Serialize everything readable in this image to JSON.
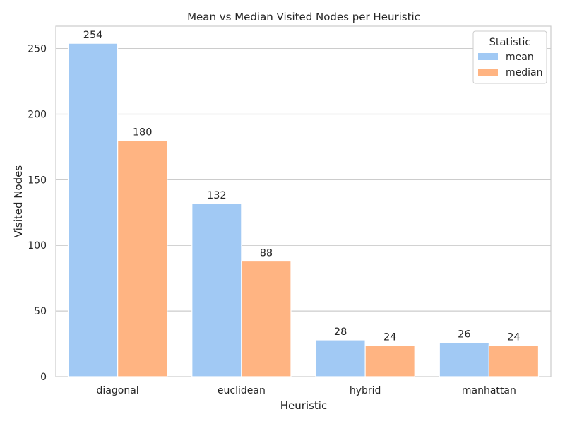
{
  "chart_data": {
    "type": "bar",
    "title": "Mean vs Median Visited Nodes per Heuristic",
    "xlabel": "Heuristic",
    "ylabel": "Visited Nodes",
    "categories": [
      "diagonal",
      "euclidean",
      "hybrid",
      "manhattan"
    ],
    "series": [
      {
        "name": "mean",
        "values": [
          254,
          132,
          28,
          26
        ],
        "labels": [
          "254",
          "132",
          "28",
          "26"
        ],
        "color": "#a1c9f4"
      },
      {
        "name": "median",
        "values": [
          180,
          88,
          24,
          24
        ],
        "labels": [
          "180",
          "88",
          "24",
          "24"
        ],
        "color": "#ffb482"
      }
    ],
    "ylim": [
      0,
      267
    ],
    "yticks": [
      0,
      50,
      100,
      150,
      200,
      250
    ],
    "grid": "horizontal",
    "legend": {
      "title": "Statistic",
      "placement": "top-right"
    }
  }
}
